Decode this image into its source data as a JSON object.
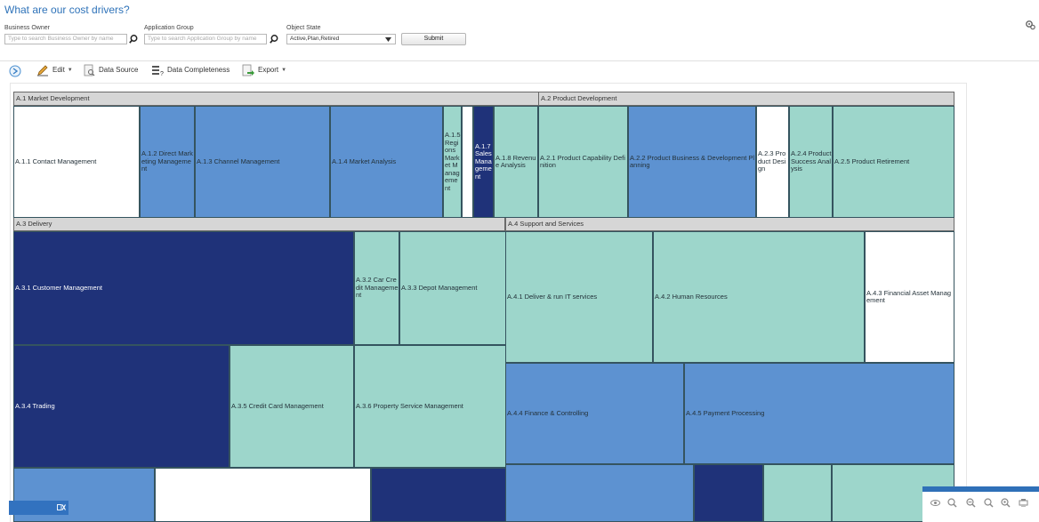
{
  "page": {
    "title": "What are our cost drivers?",
    "icon": "settings-icon"
  },
  "filters": {
    "business_owner": {
      "label": "Business Owner",
      "placeholder": "Type to search Business Owner by name",
      "icon": "search-icon"
    },
    "application_group": {
      "label": "Application Group",
      "placeholder": "Type to search Application Group by name",
      "icon": "search-icon"
    },
    "object_state": {
      "label": "Object State",
      "value": "Active,Plan,Retired",
      "icon": "chevron-down-icon"
    },
    "submit_label": "Submit"
  },
  "toolbar": {
    "items": [
      {
        "label": "Edit",
        "icon": "pencil-icon",
        "has_menu": true
      },
      {
        "label": "Data Source",
        "icon": "data-source-icon",
        "has_menu": false
      },
      {
        "label": "Data Completeness",
        "icon": "data-completeness-icon",
        "has_menu": false
      },
      {
        "label": "Export",
        "icon": "export-icon",
        "has_menu": true
      }
    ],
    "expand_icon": "expand-circle-icon"
  },
  "colors": {
    "light": "#9dd6cb",
    "medium": "#72bbd7",
    "blue": "#5d92d1",
    "navy": "#1f3279",
    "header": "#d6d6d6",
    "accent": "#2f73b9"
  },
  "treemap": {
    "groups": [
      {
        "label": "A.1 Market Development"
      },
      {
        "label": "A.2 Product Development"
      },
      {
        "label": "A.3 Delivery"
      },
      {
        "label": "A.4 Support and Services"
      }
    ],
    "cells": [
      {
        "label": "A.1.1 Contact Management",
        "color": "medium"
      },
      {
        "label": "A.1.2 Direct Marketing Management",
        "color": "blue"
      },
      {
        "label": "A.1.3 Channel Management",
        "color": "blue"
      },
      {
        "label": "A.1.4 Market Analysis",
        "color": "blue"
      },
      {
        "label": "A.1.5 Regions Market Management",
        "color": "light"
      },
      {
        "label": "",
        "color": "medium"
      },
      {
        "label": "A.1.7 Sales Management",
        "color": "navy"
      },
      {
        "label": "A.1.8 Revenue Analysis",
        "color": "light"
      },
      {
        "label": "A.2.1 Product Capability Definition",
        "color": "light"
      },
      {
        "label": "A.2.2 Product Business & Development Planning",
        "color": "blue"
      },
      {
        "label": "A.2.3 Product Design",
        "color": "medium"
      },
      {
        "label": "A.2.4 Product Success Analysis",
        "color": "light"
      },
      {
        "label": "A.2.5 Product Retirement",
        "color": "light"
      },
      {
        "label": "A.3.1 Customer Management",
        "color": "navy"
      },
      {
        "label": "A.3.2 Car Credit Management",
        "color": "light"
      },
      {
        "label": "A.3.3 Depot Management",
        "color": "light"
      },
      {
        "label": "A.3.4 Trading",
        "color": "navy"
      },
      {
        "label": "A.3.5 Credit Card Management",
        "color": "light"
      },
      {
        "label": "A.3.6 Property Service Management",
        "color": "light"
      },
      {
        "label": "",
        "color": "blue"
      },
      {
        "label": "",
        "color": "medium"
      },
      {
        "label": "",
        "color": "navy"
      },
      {
        "label": "A.4.1 Deliver & run IT services",
        "color": "light"
      },
      {
        "label": "A.4.2 Human Resources",
        "color": "light"
      },
      {
        "label": "A.4.3 Financial Asset Management",
        "color": "medium"
      },
      {
        "label": "A.4.4 Finance & Controlling",
        "color": "blue"
      },
      {
        "label": "A.4.5 Payment Processing",
        "color": "blue"
      },
      {
        "label": "",
        "color": "blue"
      },
      {
        "label": "",
        "color": "navy"
      },
      {
        "label": "",
        "color": "light"
      },
      {
        "label": "",
        "color": "light"
      }
    ]
  },
  "zoom_controls": {
    "icons": [
      "eye-icon",
      "zoom-in-icon",
      "zoom-out-icon",
      "zoom-reset-icon",
      "zoom-fit-icon",
      "print-icon"
    ]
  },
  "mini_panel": {
    "icons": [
      "restore-icon",
      "close-icon"
    ]
  }
}
